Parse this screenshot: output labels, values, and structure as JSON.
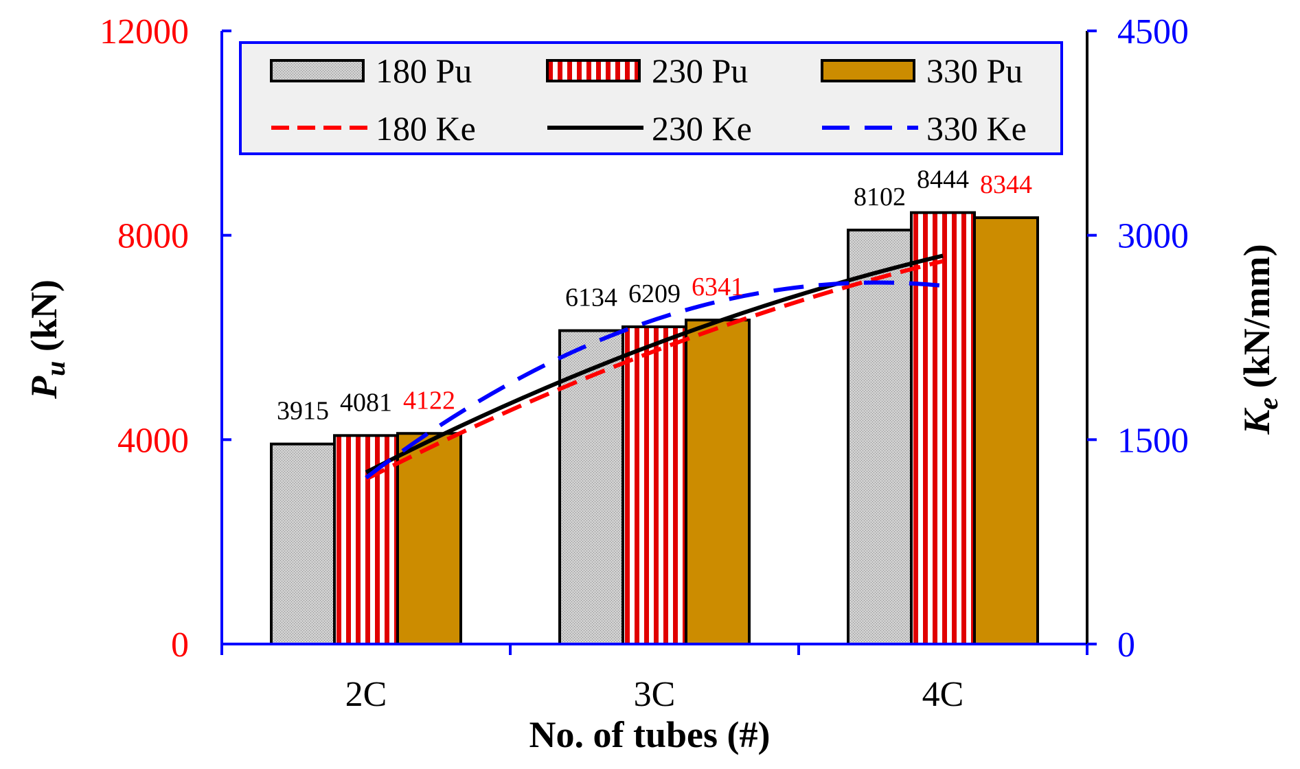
{
  "chart_data": {
    "type": "bar",
    "categories": [
      "2C",
      "3C",
      "4C"
    ],
    "series": [
      {
        "name": "180 Pu",
        "axis": "left",
        "kind": "bar",
        "values": [
          3915,
          6134,
          8102
        ],
        "labels": [
          "3915",
          "6134",
          "8102"
        ]
      },
      {
        "name": "230 Pu",
        "axis": "left",
        "kind": "bar",
        "values": [
          4081,
          6209,
          8444
        ],
        "labels": [
          "4081",
          "6209",
          "8444"
        ]
      },
      {
        "name": "330 Pu",
        "axis": "left",
        "kind": "bar",
        "values": [
          4122,
          6341,
          8344
        ],
        "labels": [
          "4122",
          "6341",
          "8344"
        ]
      },
      {
        "name": "180 Ke",
        "axis": "right",
        "kind": "line",
        "values": [
          1210,
          2150,
          2810
        ]
      },
      {
        "name": "230 Ke",
        "axis": "right",
        "kind": "line",
        "values": [
          1260,
          2200,
          2850
        ]
      },
      {
        "name": "330 Ke",
        "axis": "right",
        "kind": "line",
        "values": [
          1220,
          2380,
          2630
        ]
      }
    ],
    "xlabel": "No. of tubes (#)",
    "ylabel_left": {
      "main": "P",
      "sub": "u",
      "unit": " (kN)"
    },
    "ylabel_right": {
      "main": "K",
      "sub": "e",
      "unit": " (kN/mm)"
    },
    "ylim_left": [
      0,
      12000
    ],
    "ylim_right": [
      0,
      4500
    ],
    "yticks_left": [
      "0",
      "4000",
      "8000",
      "12000"
    ],
    "yticks_right": [
      "0",
      "1500",
      "3000",
      "4500"
    ],
    "grid": false,
    "legend_position": "top",
    "colors": {
      "left_axis_text": "#ff0000",
      "right_axis_text": "#0000ff",
      "axis_line": "#0000ff",
      "bar_180": "#c8c8c8",
      "bar_230_stripe": "#ff0000",
      "bar_330": "#cc8c00",
      "line_180": "#ff0000",
      "line_230": "#000000",
      "line_330": "#0000ff",
      "label_330": "#ff0000",
      "legend_bg": "#f0f0f0",
      "legend_border": "#0000ff"
    }
  }
}
